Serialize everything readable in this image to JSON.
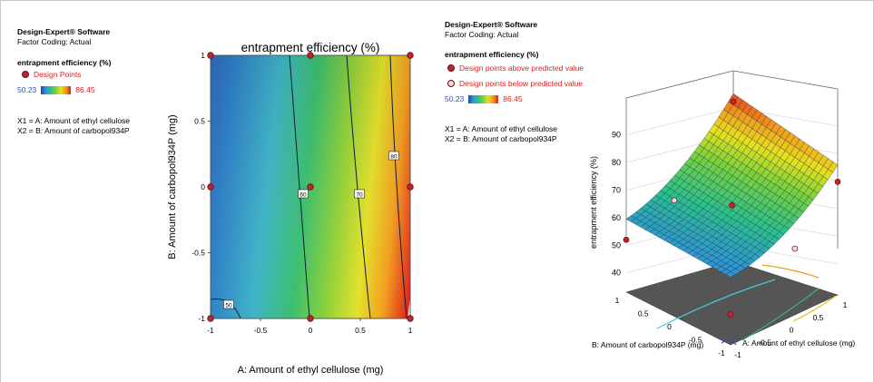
{
  "left_panel": {
    "software": "Design-Expert® Software",
    "factor_coding": "Factor Coding: Actual",
    "response": "entrapment efficiency (%)",
    "design_points": "Design Points",
    "range_min": "50.23",
    "range_max": "86.45",
    "x1_def": "X1 = A: Amount of ethyl cellulose",
    "x2_def": "X2 = B: Amount of carbopol934P"
  },
  "right_panel": {
    "software": "Design-Expert® Software",
    "factor_coding": "Factor Coding: Actual",
    "response": "entrapment efficiency (%)",
    "above": "Design points above predicted value",
    "below": "Design points below predicted value",
    "range_min": "50.23",
    "range_max": "86.45",
    "x1_def": "X1 = A: Amount of ethyl cellulose",
    "x2_def": "X2 = B: Amount of carbopol934P"
  },
  "colors": {
    "low": "#1d44b8",
    "high": "#e01b1b",
    "design_point": "#c0242b"
  },
  "chart_data": [
    {
      "type": "heatmap",
      "title": "entrapment efficiency (%)",
      "xlabel": "A: Amount of ethyl cellulose (mg)",
      "ylabel": "B: Amount of carbopol934P (mg)",
      "xlim": [
        -1,
        1
      ],
      "ylim": [
        -1,
        1
      ],
      "xticks": [
        "-1",
        "-0.5",
        "0",
        "0.5",
        "1"
      ],
      "yticks": [
        "-1",
        "-0.5",
        "0",
        "0.5",
        "1"
      ],
      "contour_labels": [
        "50",
        "60",
        "70",
        "80"
      ],
      "design_points": [
        {
          "x": -1,
          "y": 1
        },
        {
          "x": 0,
          "y": 1
        },
        {
          "x": 1,
          "y": 1
        },
        {
          "x": -1,
          "y": 0
        },
        {
          "x": 0,
          "y": 0
        },
        {
          "x": 1,
          "y": 0
        },
        {
          "x": -1,
          "y": -1
        },
        {
          "x": 0,
          "y": -1
        },
        {
          "x": 1,
          "y": -1
        }
      ]
    },
    {
      "type": "surface",
      "zlabel": "entrapment efficiency (%)",
      "xlabel": "A: Amount of ethyl cellulose (mg)",
      "ylabel": "B: Amount of carbopol934P (mg)",
      "zticks": [
        "40",
        "50",
        "60",
        "70",
        "80",
        "90"
      ],
      "xticks": [
        "-1",
        "-0.5",
        "0",
        "0.5",
        "1"
      ],
      "yticks": [
        "-1",
        "-0.5",
        "0",
        "0.5",
        "1"
      ],
      "zlim": [
        40,
        90
      ]
    }
  ]
}
